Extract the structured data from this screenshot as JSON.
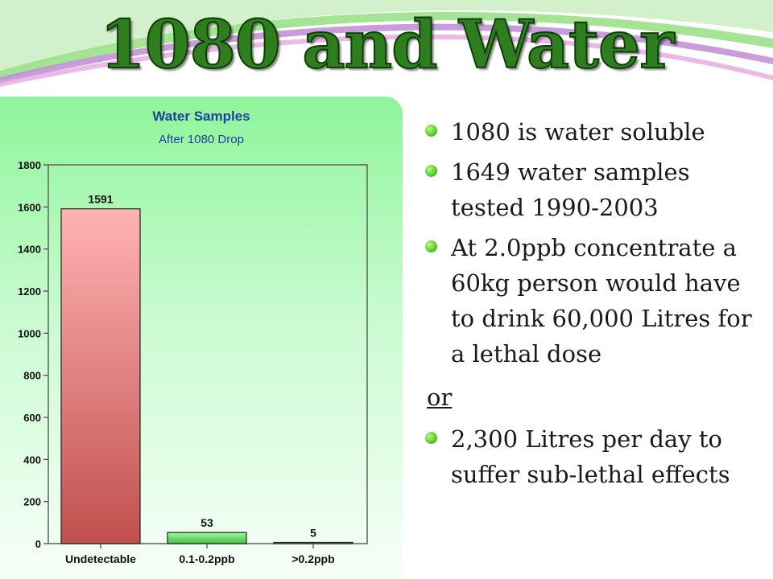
{
  "slide": {
    "title": "1080 and Water",
    "bullets_top": [
      "1080 is water soluble",
      "1649 water samples tested 1990-2003",
      "At 2.0ppb concentrate a 60kg person would have to drink 60,000 Litres for a lethal dose"
    ],
    "or_text": "or",
    "bullets_bottom": [
      "2,300 Litres per day to suffer sub-lethal effects"
    ]
  },
  "colors": {
    "title_green": "#2e7d1e",
    "bar_red_top": "#ffb3b3",
    "bar_red_bottom": "#c0504d",
    "bar_green_top": "#9ff59f",
    "bar_green_bottom": "#44c044"
  },
  "chart_data": {
    "type": "bar",
    "title": "Water Samples",
    "subtitle": "After 1080 Drop",
    "categories": [
      "Undetectable",
      "0.1-0.2ppb",
      ">0.2ppb"
    ],
    "values": [
      1591,
      53,
      5
    ],
    "data_labels": [
      "1591",
      "53",
      "5"
    ],
    "yticks": [
      0,
      200,
      400,
      600,
      800,
      1000,
      1200,
      1400,
      1600,
      1800
    ],
    "ylim": [
      0,
      1800
    ],
    "xlabel": "",
    "ylabel": "",
    "grid": false,
    "legend": "none"
  }
}
